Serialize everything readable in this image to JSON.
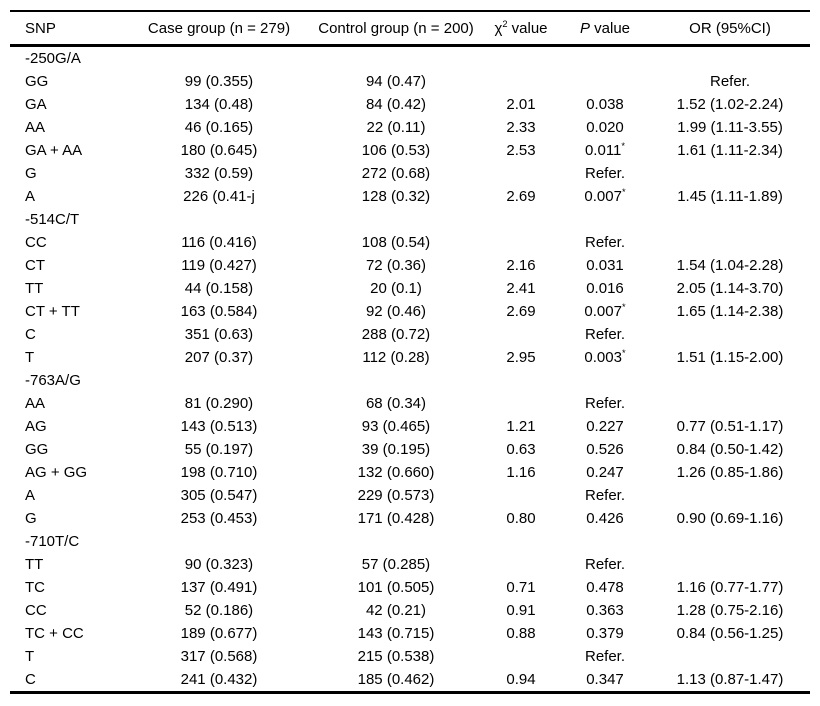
{
  "table": {
    "headers": {
      "snp": "SNP",
      "case_group": "Case group (n = 279)",
      "control_group": "Control group (n = 200)",
      "chi_symbol": "χ",
      "chi_sup": "2",
      "chi_rest": " value",
      "p_italic": "P",
      "p_rest": " value",
      "or_ci": "OR (95%CI)"
    },
    "significance_marker": "*",
    "reference_label": "Refer.",
    "rows": [
      {
        "section": "-250G/A"
      },
      {
        "snp": "GG",
        "case_group": "99 (0.355)",
        "control_group": "94 (0.47)",
        "chi": "",
        "p": "",
        "p_star": false,
        "or": "Refer."
      },
      {
        "snp": "GA",
        "case_group": "134 (0.48)",
        "control_group": "84 (0.42)",
        "chi": "2.01",
        "p": "0.038",
        "p_star": false,
        "or": "1.52 (1.02-2.24)"
      },
      {
        "snp": "AA",
        "case_group": "46 (0.165)",
        "control_group": "22 (0.11)",
        "chi": "2.33",
        "p": "0.020",
        "p_star": false,
        "or": "1.99 (1.11-3.55)"
      },
      {
        "snp": "GA + AA",
        "case_group": "180 (0.645)",
        "control_group": "106 (0.53)",
        "chi": "2.53",
        "p": "0.011",
        "p_star": true,
        "or": "1.61 (1.11-2.34)"
      },
      {
        "snp": "G",
        "case_group": "332 (0.59)",
        "control_group": "272 (0.68)",
        "chi": "",
        "p": "Refer.",
        "p_star": false,
        "or": ""
      },
      {
        "snp": "A",
        "case_group": "226 (0.41-j",
        "control_group": "128 (0.32)",
        "chi": "2.69",
        "p": "0.007",
        "p_star": true,
        "or": "1.45 (1.11-1.89)"
      },
      {
        "section": "-514C/T"
      },
      {
        "snp": "CC",
        "case_group": "116 (0.416)",
        "control_group": "108 (0.54)",
        "chi": "",
        "p": "Refer.",
        "p_star": false,
        "or": ""
      },
      {
        "snp": "CT",
        "case_group": "119 (0.427)",
        "control_group": "72 (0.36)",
        "chi": "2.16",
        "p": "0.031",
        "p_star": false,
        "or": "1.54 (1.04-2.28)"
      },
      {
        "snp": "TT",
        "case_group": "44 (0.158)",
        "control_group": "20 (0.1)",
        "chi": "2.41",
        "p": "0.016",
        "p_star": false,
        "or": "2.05 (1.14-3.70)"
      },
      {
        "snp": "CT + TT",
        "case_group": "163 (0.584)",
        "control_group": "92 (0.46)",
        "chi": "2.69",
        "p": "0.007",
        "p_star": true,
        "or": "1.65 (1.14-2.38)"
      },
      {
        "snp": "C",
        "case_group": "351 (0.63)",
        "control_group": "288 (0.72)",
        "chi": "",
        "p": "Refer.",
        "p_star": false,
        "or": ""
      },
      {
        "snp": "T",
        "case_group": "207 (0.37)",
        "control_group": "112 (0.28)",
        "chi": "2.95",
        "p": "0.003",
        "p_star": true,
        "or": "1.51 (1.15-2.00)"
      },
      {
        "section": "-763A/G"
      },
      {
        "snp": "AA",
        "case_group": "81 (0.290)",
        "control_group": "68 (0.34)",
        "chi": "",
        "p": "Refer.",
        "p_star": false,
        "or": ""
      },
      {
        "snp": "AG",
        "case_group": "143 (0.513)",
        "control_group": "93 (0.465)",
        "chi": "1.21",
        "p": "0.227",
        "p_star": false,
        "or": "0.77 (0.51-1.17)"
      },
      {
        "snp": "GG",
        "case_group": "55 (0.197)",
        "control_group": "39 (0.195)",
        "chi": "0.63",
        "p": "0.526",
        "p_star": false,
        "or": "0.84 (0.50-1.42)"
      },
      {
        "snp": "AG + GG",
        "case_group": "198 (0.710)",
        "control_group": "132 (0.660)",
        "chi": "1.16",
        "p": "0.247",
        "p_star": false,
        "or": "1.26 (0.85-1.86)"
      },
      {
        "snp": "A",
        "case_group": "305 (0.547)",
        "control_group": "229 (0.573)",
        "chi": "",
        "p": "Refer.",
        "p_star": false,
        "or": ""
      },
      {
        "snp": "G",
        "case_group": "253 (0.453)",
        "control_group": "171 (0.428)",
        "chi": "0.80",
        "p": "0.426",
        "p_star": false,
        "or": "0.90 (0.69-1.16)"
      },
      {
        "section": "-710T/C"
      },
      {
        "snp": "TT",
        "case_group": "90 (0.323)",
        "control_group": "57 (0.285)",
        "chi": "",
        "p": "Refer.",
        "p_star": false,
        "or": ""
      },
      {
        "snp": "TC",
        "case_group": "137 (0.491)",
        "control_group": "101 (0.505)",
        "chi": "0.71",
        "p": "0.478",
        "p_star": false,
        "or": "1.16 (0.77-1.77)"
      },
      {
        "snp": "CC",
        "case_group": "52 (0.186)",
        "control_group": "42 (0.21)",
        "chi": "0.91",
        "p": "0.363",
        "p_star": false,
        "or": "1.28 (0.75-2.16)"
      },
      {
        "snp": "TC + CC",
        "case_group": "189 (0.677)",
        "control_group": "143 (0.715)",
        "chi": "0.88",
        "p": "0.379",
        "p_star": false,
        "or": "0.84 (0.56-1.25)"
      },
      {
        "snp": "T",
        "case_group": "317 (0.568)",
        "control_group": "215 (0.538)",
        "chi": "",
        "p": "Refer.",
        "p_star": false,
        "or": ""
      },
      {
        "snp": "C",
        "case_group": "241 (0.432)",
        "control_group": "185 (0.462)",
        "chi": "0.94",
        "p": "0.347",
        "p_star": false,
        "or": "1.13 (0.87-1.47)"
      }
    ]
  }
}
